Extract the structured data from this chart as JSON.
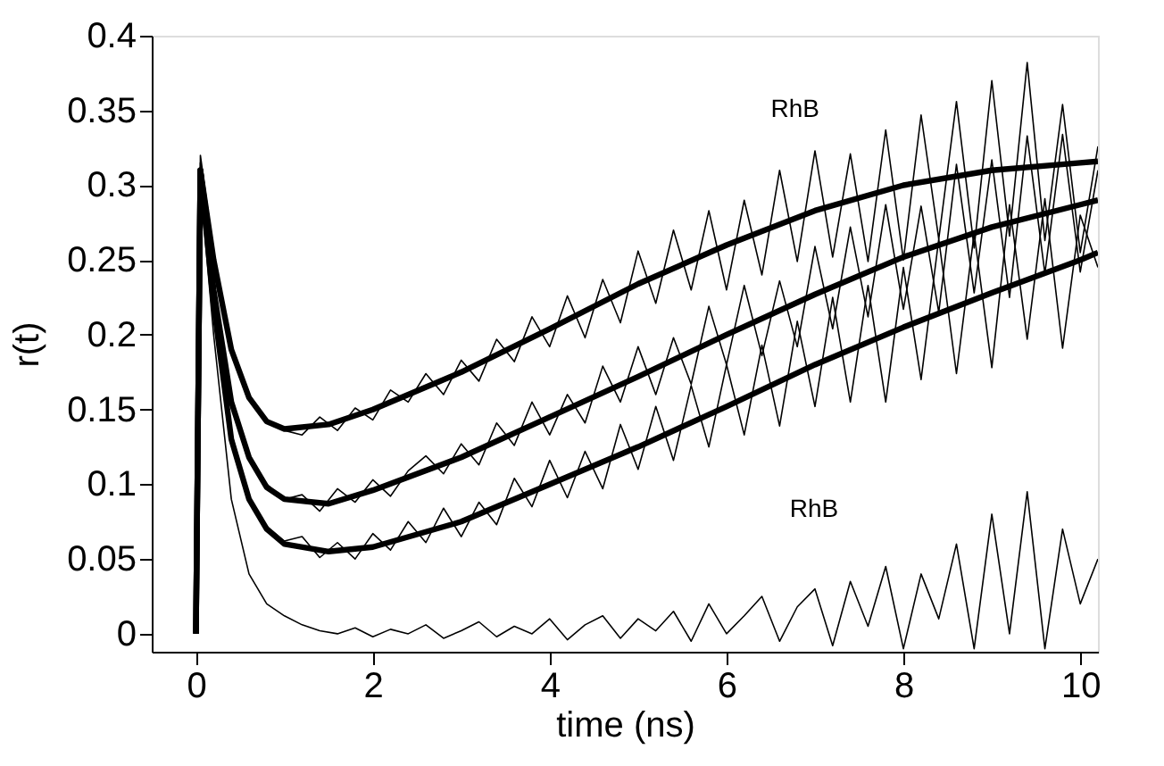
{
  "chart_data": {
    "type": "line",
    "xlabel": "time  (ns)",
    "ylabel": "r(t)",
    "x": [
      0,
      0.05,
      0.2,
      0.4,
      0.6,
      0.8,
      1.0,
      1.2,
      1.4,
      1.6,
      1.8,
      2.0,
      2.2,
      2.4,
      2.6,
      2.8,
      3.0,
      3.2,
      3.4,
      3.6,
      3.8,
      4.0,
      4.2,
      4.4,
      4.6,
      4.8,
      5.0,
      5.2,
      5.4,
      5.6,
      5.8,
      6.0,
      6.2,
      6.4,
      6.6,
      6.8,
      7.0,
      7.2,
      7.4,
      7.6,
      7.8,
      8.0,
      8.2,
      8.4,
      8.6,
      8.8,
      9.0,
      9.2,
      9.4,
      9.6,
      9.8,
      10.0,
      10.2
    ],
    "series": [
      {
        "color": "#000000",
        "values": [
          0,
          0.32,
          0.255,
          0.19,
          0.16,
          0.143,
          0.136,
          0.133,
          0.145,
          0.136,
          0.151,
          0.143,
          0.163,
          0.155,
          0.174,
          0.16,
          0.183,
          0.169,
          0.197,
          0.182,
          0.212,
          0.192,
          0.226,
          0.198,
          0.237,
          0.208,
          0.256,
          0.221,
          0.27,
          0.23,
          0.283,
          0.23,
          0.29,
          0.24,
          0.31,
          0.249,
          0.323,
          0.252,
          0.321,
          0.249,
          0.337,
          0.25,
          0.347,
          0.264,
          0.356,
          0.258,
          0.37,
          0.266,
          0.382,
          0.263,
          0.354,
          0.255,
          0.326
        ]
      },
      {
        "color": "#000000",
        "values": [
          0,
          0.315,
          0.235,
          0.158,
          0.12,
          0.1,
          0.09,
          0.093,
          0.082,
          0.097,
          0.088,
          0.103,
          0.092,
          0.109,
          0.119,
          0.107,
          0.127,
          0.113,
          0.141,
          0.126,
          0.155,
          0.133,
          0.16,
          0.141,
          0.179,
          0.155,
          0.192,
          0.16,
          0.198,
          0.167,
          0.219,
          0.18,
          0.233,
          0.186,
          0.236,
          0.192,
          0.259,
          0.204,
          0.272,
          0.212,
          0.287,
          0.217,
          0.286,
          0.215,
          0.314,
          0.228,
          0.317,
          0.225,
          0.333,
          0.241,
          0.334,
          0.242,
          0.31
        ]
      },
      {
        "color": "#000000",
        "values": [
          0,
          0.31,
          0.22,
          0.135,
          0.088,
          0.072,
          0.062,
          0.065,
          0.051,
          0.061,
          0.05,
          0.067,
          0.056,
          0.075,
          0.061,
          0.084,
          0.065,
          0.088,
          0.073,
          0.104,
          0.085,
          0.116,
          0.091,
          0.122,
          0.097,
          0.14,
          0.11,
          0.152,
          0.116,
          0.166,
          0.125,
          0.18,
          0.133,
          0.193,
          0.139,
          0.209,
          0.152,
          0.225,
          0.155,
          0.233,
          0.155,
          0.245,
          0.17,
          0.264,
          0.174,
          0.268,
          0.178,
          0.287,
          0.197,
          0.291,
          0.191,
          0.28,
          0.245
        ]
      },
      {
        "color": "#000000",
        "values": [
          0,
          0.3,
          0.2,
          0.09,
          0.04,
          0.02,
          0.012,
          0.006,
          0.002,
          0.0,
          0.004,
          -0.002,
          0.003,
          0.0,
          0.006,
          -0.003,
          0.002,
          0.008,
          -0.002,
          0.005,
          0.0,
          0.01,
          -0.004,
          0.006,
          0.012,
          -0.003,
          0.01,
          0.002,
          0.015,
          -0.005,
          0.02,
          0.0,
          0.012,
          0.025,
          -0.005,
          0.018,
          0.03,
          -0.008,
          0.035,
          0.005,
          0.045,
          -0.01,
          0.04,
          0.01,
          0.06,
          -0.01,
          0.08,
          0.0,
          0.095,
          -0.01,
          0.07,
          0.02,
          0.05
        ]
      },
      {
        "color": "#000000",
        "x": [
          0,
          0.05,
          0.2,
          0.4,
          0.6,
          0.8,
          1,
          1.5,
          2,
          3,
          4,
          5,
          6,
          7,
          8,
          9,
          10,
          10.2
        ],
        "values": [
          0,
          0.31,
          0.25,
          0.19,
          0.158,
          0.142,
          0.137,
          0.14,
          0.15,
          0.175,
          0.204,
          0.234,
          0.26,
          0.283,
          0.3,
          0.31,
          0.315,
          0.316
        ]
      },
      {
        "color": "#000000",
        "x": [
          0,
          0.05,
          0.2,
          0.4,
          0.6,
          0.8,
          1,
          1.5,
          2,
          3,
          4,
          5,
          6,
          7,
          8,
          9,
          10,
          10.2
        ],
        "values": [
          0,
          0.31,
          0.23,
          0.155,
          0.118,
          0.098,
          0.09,
          0.087,
          0.096,
          0.118,
          0.145,
          0.172,
          0.2,
          0.227,
          0.252,
          0.272,
          0.287,
          0.29
        ]
      },
      {
        "color": "#000000",
        "x": [
          0,
          0.05,
          0.2,
          0.4,
          0.6,
          0.8,
          1,
          1.5,
          2,
          3,
          4,
          5,
          6,
          7,
          8,
          9,
          10,
          10.2
        ],
        "values": [
          0,
          0.31,
          0.22,
          0.13,
          0.09,
          0.07,
          0.06,
          0.055,
          0.058,
          0.075,
          0.1,
          0.125,
          0.152,
          0.18,
          0.205,
          0.228,
          0.25,
          0.255
        ]
      }
    ],
    "xlim": [
      -0.5,
      10.2
    ],
    "xticks": [
      0,
      2,
      4,
      6,
      8,
      10
    ],
    "ylim": [
      -0.012,
      0.4
    ],
    "yticks": [
      0,
      0.05,
      0.1,
      0.15,
      0.2,
      0.25,
      0.3,
      0.35,
      0.4
    ],
    "annotations": [
      "RhB",
      "RhB"
    ],
    "grid": false
  }
}
